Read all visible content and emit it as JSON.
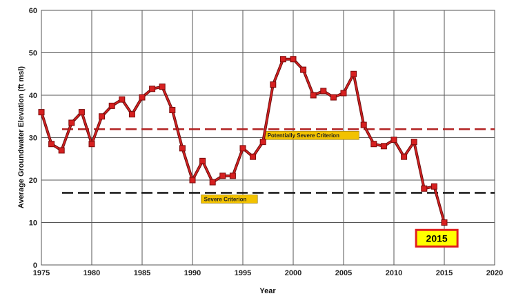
{
  "chart_data": {
    "type": "line",
    "xlabel": "Year",
    "ylabel": "Average Groundwater Elevation (ft msl)",
    "xlim": [
      1975,
      2020
    ],
    "ylim": [
      0,
      60
    ],
    "xticks": [
      1975,
      1980,
      1985,
      1990,
      1995,
      2000,
      2005,
      2010,
      2015,
      2020
    ],
    "yticks": [
      0,
      10,
      20,
      30,
      40,
      50,
      60
    ],
    "grid": true,
    "series": [
      {
        "name": "",
        "color": "#d62020",
        "marker_color": "#d62020",
        "x": [
          1975,
          1976,
          1977,
          1978,
          1979,
          1980,
          1981,
          1982,
          1983,
          1984,
          1985,
          1986,
          1987,
          1988,
          1989,
          1990,
          1991,
          1992,
          1993,
          1994,
          1995,
          1996,
          1997,
          1998,
          1999,
          2000,
          2001,
          2002,
          2003,
          2004,
          2005,
          2006,
          2007,
          2008,
          2009,
          2010,
          2011,
          2012,
          2013,
          2014,
          2015
        ],
        "y": [
          36,
          28.5,
          27,
          33.5,
          36,
          28.5,
          35,
          37.5,
          39,
          35.5,
          39.5,
          41.5,
          42,
          36.5,
          27.5,
          20,
          24.5,
          19.5,
          21,
          21,
          27.5,
          25.5,
          29,
          42.5,
          48.5,
          48.5,
          46,
          40,
          41,
          39.5,
          40.5,
          45,
          33,
          28.5,
          28,
          29.5,
          25.5,
          29,
          18,
          18.5,
          10
        ]
      }
    ],
    "reference_lines": [
      {
        "label": "Potentially Severe Criterion",
        "y": 32,
        "color": "#b22222",
        "label_x": 1997.3,
        "label_bg": "#f2c200"
      },
      {
        "label": "Severe Criterion",
        "y": 17,
        "color": "#111111",
        "label_x": 1991,
        "label_bg": "#f2c200"
      }
    ],
    "annotations": [
      {
        "text": "2015",
        "x": 2012.2,
        "y": 5,
        "bg": "#ffff00",
        "border": "#e02020"
      }
    ]
  }
}
